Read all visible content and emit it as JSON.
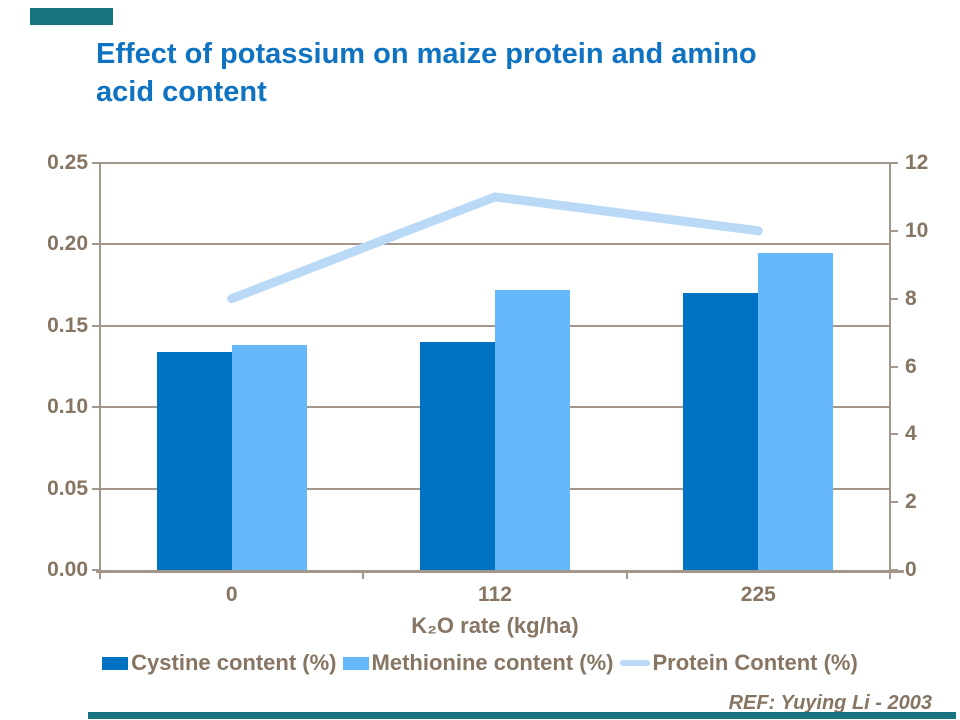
{
  "slide": {
    "title": "Effect of potassium on maize protein and amino\nacid content",
    "reference": "REF: Yuying Li - 2003"
  },
  "colors": {
    "title_blue": "#0F73C2",
    "text_brown": "#877563",
    "axis_line": "#A3968A",
    "cystine_blue": "#0072C2",
    "methionine_blue": "#65B9FA",
    "protein_line_blue": "#BAD9F7",
    "accent_teal": "#177380"
  },
  "chart_data": {
    "type": "combo-bar-line",
    "categories": [
      "0",
      "112",
      "225"
    ],
    "series": [
      {
        "name": "Cystine content (%)",
        "type": "bar",
        "axis": "left",
        "values": [
          0.134,
          0.14,
          0.17
        ],
        "color_key": "cystine_blue"
      },
      {
        "name": "Methionine content (%)",
        "type": "bar",
        "axis": "left",
        "values": [
          0.138,
          0.172,
          0.195
        ],
        "color_key": "methionine_blue"
      },
      {
        "name": "Protein Content (%)",
        "type": "line",
        "axis": "right",
        "values": [
          8.0,
          11.0,
          10.0
        ],
        "color_key": "protein_line_blue"
      }
    ],
    "xlabel": "K₂O rate (kg/ha)",
    "left_axis": {
      "min": 0,
      "max": 0.25,
      "ticks": [
        "0.25",
        "0.20",
        "0.15",
        "0.10",
        "0.05",
        "0.00"
      ]
    },
    "right_axis": {
      "min": 0,
      "max": 12,
      "ticks": [
        "12",
        "10",
        "8",
        "6",
        "4",
        "2",
        "0"
      ]
    },
    "grid": true,
    "legend_position": "bottom"
  }
}
